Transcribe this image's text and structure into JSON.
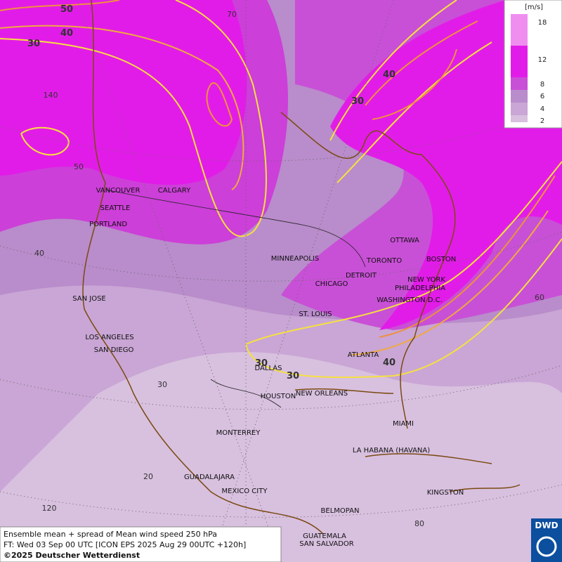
{
  "map": {
    "legend": {
      "unit": "[m/s]",
      "labels": [
        "18",
        "12",
        "8",
        "6",
        "4",
        "2"
      ]
    },
    "cities": [
      "VANCOUVER",
      "CALGARY",
      "SEATTLE",
      "PORTLAND",
      "MINNEAPOLIS",
      "OTTAWA",
      "TORONTO",
      "BOSTON",
      "DETROIT",
      "CHICAGO",
      "NEW YORK",
      "PHILADELPHIA",
      "WASHINGTON D.C.",
      "SAN JOSE",
      "ST. LOUIS",
      "LOS ANGELES",
      "SAN DIEGO",
      "ATLANTA",
      "DALLAS",
      "HOUSTON",
      "NEW ORLEANS",
      "MIAMI",
      "MONTERREY",
      "LA HABANA (HAVANA)",
      "GUADALAJARA",
      "MEXICO CITY",
      "KINGSTON",
      "BELMOPAN",
      "GUATEMALA",
      "SAN SALVADOR"
    ],
    "contour_labels": [
      "50",
      "40",
      "30",
      "30",
      "40",
      "30",
      "30",
      "40"
    ],
    "grid_labels": [
      "70",
      "140",
      "50",
      "40",
      "30",
      "20",
      "120",
      "60",
      "80"
    ],
    "footer": [
      "Ensemble mean + spread of Mean wind speed 250 hPa",
      "FT: Wed 03 Sep 00 UTC [ICON EPS 2025 Aug 29 00UTC +120h]",
      "©2025 Deutscher Wetterdienst"
    ],
    "logo": "DWD"
  }
}
